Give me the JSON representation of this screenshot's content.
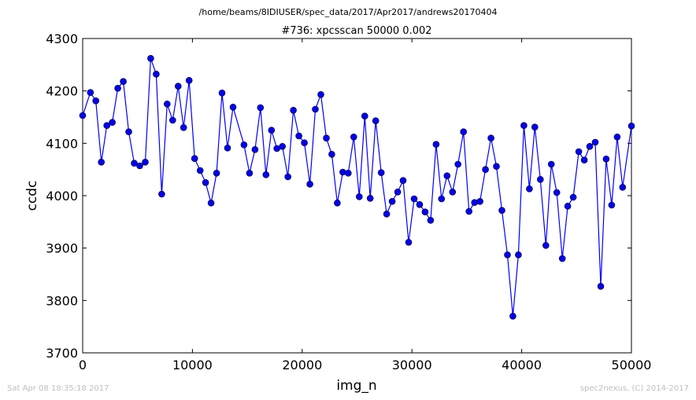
{
  "header": {
    "path": "/home/beams/8IDIUSER/spec_data/2017/Apr2017/andrews20170404"
  },
  "footer": {
    "timestamp": "Sat Apr 08 18:35:18 2017",
    "credit": "spec2nexus, (C) 2014-2017"
  },
  "chart_data": {
    "type": "line",
    "title": "#736: xpcsscan 50000 0.002",
    "xlabel": "img_n",
    "ylabel": "ccdc",
    "xlim": [
      0,
      50000
    ],
    "ylim": [
      3700,
      4300
    ],
    "xticks": [
      0,
      10000,
      20000,
      30000,
      40000,
      50000
    ],
    "yticks": [
      3700,
      3800,
      3900,
      4000,
      4100,
      4200,
      4300
    ],
    "xtick_labels": [
      "0",
      "10000",
      "20000",
      "30000",
      "40000",
      "50000"
    ],
    "ytick_labels": [
      "3700",
      "3800",
      "3900",
      "4000",
      "4100",
      "4200",
      "4300"
    ],
    "grid": false,
    "series_color": "#0000ff",
    "series": [
      {
        "marker": "circle",
        "x": [
          0,
          700,
          1200,
          1700,
          2200,
          2700,
          3200,
          3700,
          4200,
          4700,
          5200,
          5700,
          6200,
          6700,
          7200,
          7700,
          8200,
          8700,
          9200,
          9700,
          10200,
          10700,
          11200,
          11700,
          12200,
          12700,
          13200,
          13700,
          14700,
          15200,
          15700,
          16200,
          16700,
          17200,
          17700,
          18200,
          18700,
          19200,
          19700,
          20200,
          20700,
          21200,
          21700,
          22200,
          22700,
          23200,
          23700,
          24200,
          24700,
          25200,
          25700,
          26200,
          26700,
          27200,
          27700,
          28200,
          28700,
          29200,
          29700,
          30200,
          30700,
          31200,
          31700,
          32200,
          32700,
          33200,
          33700,
          34200,
          34700,
          35200,
          35700,
          36200,
          36700,
          37200,
          37700,
          38200,
          38700,
          39200,
          39700,
          40200,
          40700,
          41200,
          41700,
          42200,
          42700,
          43200,
          43700,
          44200,
          44700,
          45200,
          45700,
          46200,
          46700,
          47200,
          47700,
          48200,
          48700,
          49200,
          50000
        ],
        "y": [
          4153,
          4197,
          4181,
          4064,
          4134,
          4140,
          4205,
          4218,
          4122,
          4062,
          4057,
          4064,
          4262,
          4232,
          4003,
          4175,
          4144,
          4209,
          4130,
          4220,
          4071,
          4048,
          4025,
          3986,
          4043,
          4196,
          4091,
          4169,
          4097,
          4043,
          4088,
          4168,
          4040,
          4125,
          4090,
          4094,
          4036,
          4163,
          4114,
          4101,
          4022,
          4165,
          4193,
          4110,
          4079,
          3986,
          4045,
          4043,
          4112,
          3998,
          4152,
          3995,
          4143,
          4044,
          3965,
          3989,
          4007,
          4029,
          3911,
          3994,
          3983,
          3969,
          3953,
          4098,
          3994,
          4038,
          4007,
          4060,
          4122,
          3970,
          3987,
          3989,
          4050,
          4110,
          4056,
          3972,
          3887,
          3770,
          3887,
          4134,
          4013,
          4131,
          4031,
          3905,
          4060,
          4006,
          3880,
          3980,
          3997,
          4084,
          4068,
          4094,
          4102,
          3827,
          4070,
          3982,
          4112,
          4016,
          4133
        ]
      }
    ]
  }
}
